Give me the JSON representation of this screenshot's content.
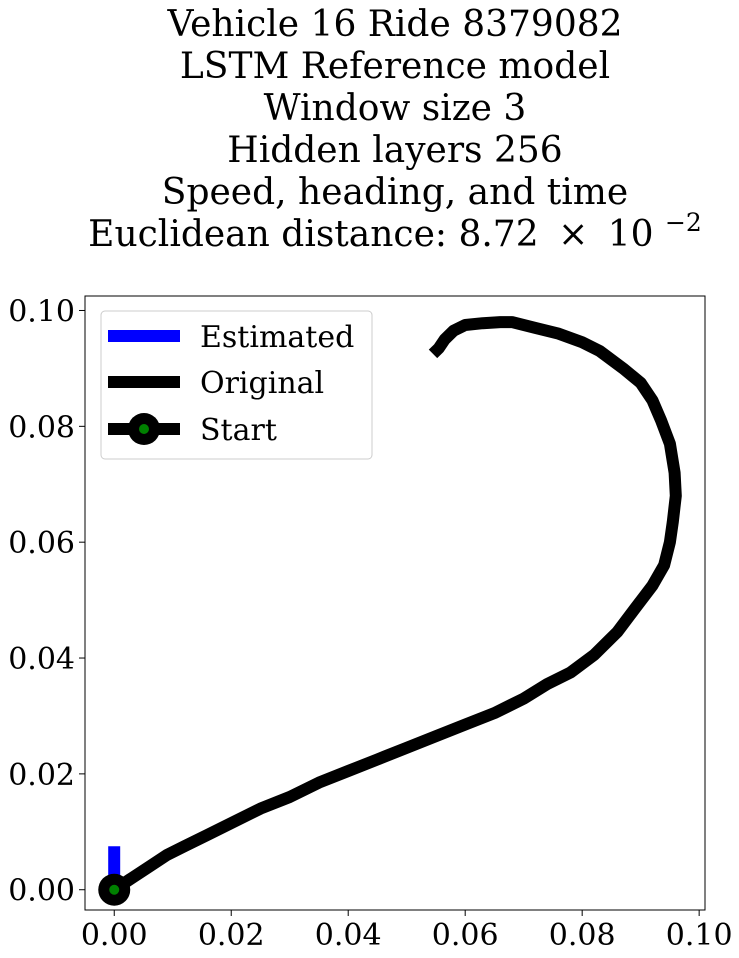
{
  "chart_data": {
    "type": "line",
    "title_lines": [
      "Vehicle 16 Ride 8379082",
      "LSTM Reference model",
      "Window size 3",
      "Hidden layers 256",
      "Speed, heading, and time"
    ],
    "title_distance": {
      "prefix": "Euclidean distance: 8.72",
      "times": "×",
      "base": "10",
      "exponent": "−2"
    },
    "xlabel": "",
    "ylabel": "",
    "xlim": [
      -0.005,
      0.101
    ],
    "ylim": [
      -0.0035,
      0.1025
    ],
    "xticks": [
      0.0,
      0.02,
      0.04,
      0.06,
      0.08,
      0.1
    ],
    "xtick_labels": [
      "0.00",
      "0.02",
      "0.04",
      "0.06",
      "0.08",
      "0.10"
    ],
    "yticks": [
      0.0,
      0.02,
      0.04,
      0.06,
      0.08,
      0.1
    ],
    "ytick_labels": [
      "0.00",
      "0.02",
      "0.04",
      "0.06",
      "0.08",
      "0.10"
    ],
    "grid": false,
    "legend_position": "upper-left",
    "series": [
      {
        "name": "Estimated",
        "color": "#0000ff",
        "x": [
          0.0,
          0.0
        ],
        "y": [
          0.0,
          0.0075
        ]
      },
      {
        "name": "Original",
        "color": "#000000",
        "x": [
          0.0,
          0.003,
          0.006,
          0.009,
          0.012,
          0.016,
          0.02,
          0.025,
          0.03,
          0.035,
          0.04,
          0.045,
          0.05,
          0.055,
          0.06,
          0.065,
          0.07,
          0.074,
          0.078,
          0.082,
          0.086,
          0.089,
          0.092,
          0.094,
          0.095,
          0.0955,
          0.096,
          0.0958,
          0.095,
          0.0935,
          0.092,
          0.09,
          0.087,
          0.083,
          0.08,
          0.076,
          0.072,
          0.068,
          0.066,
          0.063,
          0.06,
          0.058,
          0.0565,
          0.0555,
          0.0545
        ],
        "y": [
          0.0,
          0.002,
          0.004,
          0.006,
          0.0075,
          0.0095,
          0.0115,
          0.014,
          0.016,
          0.0185,
          0.0205,
          0.0225,
          0.0245,
          0.0265,
          0.0285,
          0.0305,
          0.033,
          0.0355,
          0.0375,
          0.0405,
          0.0445,
          0.0485,
          0.0525,
          0.056,
          0.06,
          0.0635,
          0.068,
          0.072,
          0.077,
          0.081,
          0.0845,
          0.0875,
          0.09,
          0.093,
          0.0945,
          0.096,
          0.097,
          0.098,
          0.098,
          0.0978,
          0.0975,
          0.0965,
          0.095,
          0.0935,
          0.0925
        ]
      }
    ],
    "start_point": {
      "name": "Start",
      "x": 0.0,
      "y": 0.0,
      "outer_color": "#000000",
      "inner_color": "#008000"
    }
  }
}
